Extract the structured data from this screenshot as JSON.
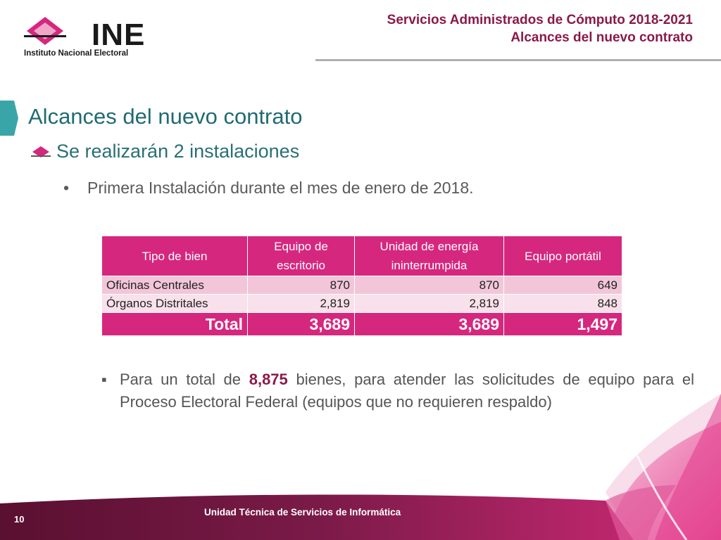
{
  "header": {
    "line1": "Servicios Administrados de Cómputo 2018-2021",
    "line2": "Alcances del nuevo contrato"
  },
  "logo": {
    "word": "INE",
    "subtitle": "Instituto Nacional Electoral"
  },
  "slide": {
    "title": "Alcances del nuevo contrato",
    "subtitle": "Se realizarán 2 instalaciones",
    "bullet": "Primera Instalación durante el mes de enero de 2018."
  },
  "table": {
    "headers": [
      "Tipo de bien",
      "Equipo de escritorio",
      "Unidad de energía ininterrumpida",
      "Equipo portátil"
    ],
    "rows": [
      [
        "Oficinas Centrales",
        "870",
        "870",
        "649"
      ],
      [
        "Órganos Distritales",
        "2,819",
        "2,819",
        "848"
      ]
    ],
    "total": [
      "Total",
      "3,689",
      "3,689",
      "1,497"
    ]
  },
  "note": {
    "prefix": "Para un total de",
    "highlight": "8,875",
    "suffix": "bienes, para atender las solicitudes de equipo para el Proceso Electoral Federal (equipos que no requieren respaldo)"
  },
  "footer": {
    "unit": "Unidad Técnica de Servicios de Informática",
    "page": "10"
  },
  "colors": {
    "accent": "#d6277f",
    "title": "#1f6b73",
    "header": "#8a1a4a"
  }
}
